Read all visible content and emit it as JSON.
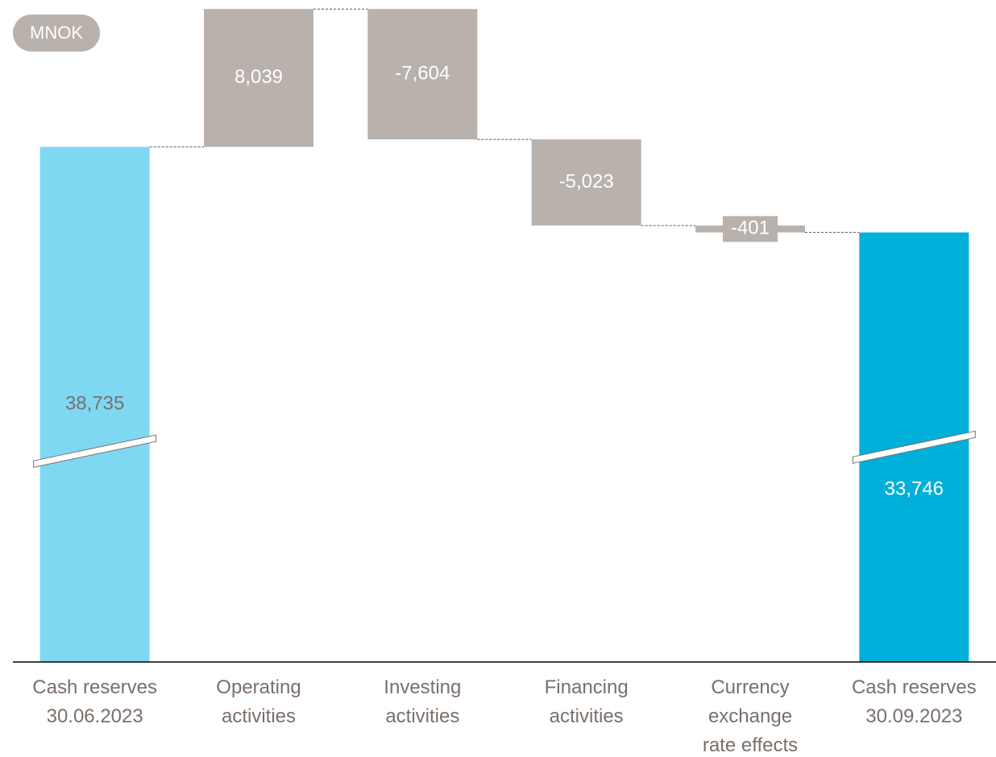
{
  "chart_data": {
    "type": "waterfall",
    "unit_label": "MNOK",
    "categories": [
      "Cash reserves\n30.06.2023",
      "Operating\nactivities",
      "Investing\nactivities",
      "Financing\nactivities",
      "Currency\nexchange\nrate effects",
      "Cash reserves\n30.09.2023"
    ],
    "values": [
      38735,
      8039,
      -7604,
      -5023,
      -401,
      33746
    ],
    "value_labels": [
      "38,735",
      "8,039",
      "-7,604",
      "-5,023",
      "-401",
      "33,746"
    ],
    "measure": [
      "absolute",
      "relative",
      "relative",
      "relative",
      "relative",
      "absolute"
    ],
    "colors": [
      "#7fd8f2",
      "#b9b1ac",
      "#b9b1ac",
      "#b9b1ac",
      "#b9b1ac",
      "#00b0da"
    ],
    "label_colors": [
      "#7a6f69",
      "#ffffff",
      "#ffffff",
      "#ffffff",
      "#ffffff",
      "#ffffff"
    ],
    "ylim": [
      8700,
      47300
    ],
    "axis_break": true,
    "connectors": true
  }
}
